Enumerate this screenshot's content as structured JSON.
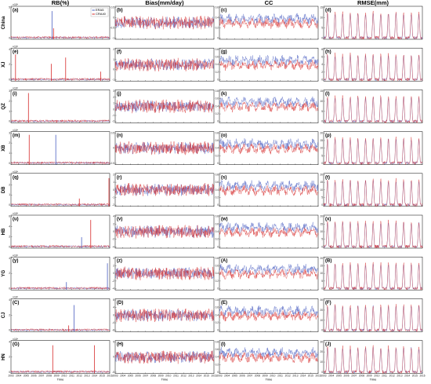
{
  "chart_data": {
    "type": "line",
    "x_ticks": [
      "2003",
      "2004",
      "2005",
      "2006",
      "2007",
      "2008",
      "2009",
      "2010",
      "2011",
      "2012",
      "2013",
      "2014",
      "2015",
      "2016"
    ],
    "xlabel": "Time",
    "legend": {
      "placement": "top-right",
      "entries": [
        {
          "name": "ERA5",
          "color": "#4a5fc1"
        },
        {
          "name": "CRA40",
          "color": "#d62a2a"
        }
      ]
    },
    "columns": [
      {
        "key": "rb",
        "title": "RB(%)",
        "scale": "×10⁴",
        "pattern": "spikes"
      },
      {
        "key": "bias",
        "title": "Bias(mm/day)",
        "scale": "",
        "pattern": "noise"
      },
      {
        "key": "cc",
        "title": "CC",
        "scale": "",
        "pattern": "noise"
      },
      {
        "key": "rmse",
        "title": "RMSE(mm)",
        "scale": "",
        "pattern": "seasonal"
      }
    ],
    "rows": [
      {
        "name": "China",
        "panels": [
          "(a)",
          "(b)",
          "(c)",
          "(d)"
        ],
        "yticks": [
          [
            "0",
            "5"
          ],
          [
            "-1",
            "-0.5",
            "0",
            "0.5"
          ],
          [
            "0",
            "0.2",
            "0.4",
            "0.6"
          ],
          [
            "0",
            "5",
            "10",
            "15"
          ]
        ]
      },
      {
        "name": "XJ",
        "panels": [
          "(e)",
          "(f)",
          "(g)",
          "(h)"
        ],
        "yticks": [
          [
            "0",
            "2",
            "4"
          ],
          [
            "-1",
            "0",
            "1",
            "2"
          ],
          [
            "0",
            "0.2",
            "0.4",
            "0.6",
            "0.8"
          ],
          [
            "0",
            "2",
            "4",
            "6",
            "8"
          ]
        ]
      },
      {
        "name": "QZ",
        "panels": [
          "(i)",
          "(j)",
          "(k)",
          "(l)"
        ],
        "yticks": [
          [
            "0",
            "1",
            "2",
            "3"
          ],
          [
            "-2",
            "-1",
            "0",
            "1",
            "2",
            "3"
          ],
          [
            "0",
            "0.2",
            "0.4",
            "0.6",
            "0.8"
          ],
          [
            "0",
            "5",
            "10",
            "15"
          ]
        ]
      },
      {
        "name": "XB",
        "panels": [
          "(m)",
          "(n)",
          "(o)",
          "(p)"
        ],
        "yticks": [
          [
            "0",
            "1",
            "2",
            "3"
          ],
          [
            "-0.5",
            "0",
            "0.5"
          ],
          [
            "0",
            "0.2",
            "0.4",
            "0.6",
            "0.8"
          ],
          [
            "0",
            "5",
            "10",
            "15",
            "20"
          ]
        ]
      },
      {
        "name": "DB",
        "panels": [
          "(q)",
          "(r)",
          "(s)",
          "(t)"
        ],
        "yticks": [
          [
            "0",
            "1",
            "2",
            "3"
          ],
          [
            "-2",
            "-1",
            "0",
            "1",
            "2"
          ],
          [
            "0",
            "0.2",
            "0.4",
            "0.6",
            "0.8"
          ],
          [
            "0",
            "5",
            "10",
            "15",
            "20"
          ]
        ]
      },
      {
        "name": "HB",
        "panels": [
          "(u)",
          "(v)",
          "(w)",
          "(x)"
        ],
        "yticks": [
          [
            "0",
            "2",
            "4",
            "6"
          ],
          [
            "-4",
            "-2",
            "0",
            "2",
            "4"
          ],
          [
            "0",
            "0.2",
            "0.4",
            "0.6",
            "0.8"
          ],
          [
            "0",
            "5",
            "10",
            "15",
            "20"
          ]
        ]
      },
      {
        "name": "YG",
        "panels": [
          "(y)",
          "(z)",
          "(A)",
          "(B)"
        ],
        "yticks": [
          [
            "0",
            "2",
            "4"
          ],
          [
            "-4",
            "-2",
            "0",
            "2",
            "4"
          ],
          [
            "0",
            "0.2",
            "0.4",
            "0.6",
            "0.8"
          ],
          [
            "0",
            "5",
            "10",
            "15",
            "20"
          ]
        ]
      },
      {
        "name": "CJ",
        "panels": [
          "(C)",
          "(D)",
          "(E)",
          "(F)"
        ],
        "yticks": [
          [
            "0",
            "2",
            "4"
          ],
          [
            "-8",
            "-4",
            "0",
            "4",
            "8"
          ],
          [
            "0",
            "0.2",
            "0.4",
            "0.6",
            "0.8"
          ],
          [
            "0",
            "10",
            "20",
            "30"
          ]
        ]
      },
      {
        "name": "HN",
        "panels": [
          "(G)",
          "(H)",
          "(I)",
          "(J)"
        ],
        "yticks": [
          [
            "0",
            "2",
            "4"
          ],
          [
            "-5",
            "0",
            "5"
          ],
          [
            "0",
            "0.2",
            "0.4",
            "0.6",
            "0.8"
          ],
          [
            "0",
            "10",
            "20",
            "30"
          ]
        ]
      }
    ],
    "rb_spikes": [
      [
        {
          "year": 2008.4,
          "v": 0.9,
          "s": "ERA5"
        },
        {
          "year": 2008.6,
          "v": 0.35,
          "s": "CRA40"
        }
      ],
      [
        {
          "year": 2003.6,
          "v": 0.85,
          "s": "CRA40"
        },
        {
          "year": 2008.3,
          "v": 0.55,
          "s": "CRA40"
        },
        {
          "year": 2010.2,
          "v": 0.75,
          "s": "CRA40"
        },
        {
          "year": 2014.8,
          "v": 0.3,
          "s": "CRA40"
        }
      ],
      [
        {
          "year": 2005.3,
          "v": 0.95,
          "s": "CRA40"
        },
        {
          "year": 2009.0,
          "v": 0.08,
          "s": "CRA40"
        }
      ],
      [
        {
          "year": 2005.4,
          "v": 0.95,
          "s": "CRA40"
        },
        {
          "year": 2008.9,
          "v": 0.95,
          "s": "ERA5"
        }
      ],
      [
        {
          "year": 2012.0,
          "v": 0.25,
          "s": "CRA40"
        },
        {
          "year": 2015.9,
          "v": 0.9,
          "s": "CRA40"
        }
      ],
      [
        {
          "year": 2012.3,
          "v": 0.35,
          "s": "ERA5"
        },
        {
          "year": 2013.5,
          "v": 0.9,
          "s": "CRA40"
        }
      ],
      [
        {
          "year": 2010.3,
          "v": 0.25,
          "s": "ERA5"
        },
        {
          "year": 2015.7,
          "v": 0.85,
          "s": "ERA5"
        }
      ],
      [
        {
          "year": 2011.3,
          "v": 0.85,
          "s": "ERA5"
        },
        {
          "year": 2010.6,
          "v": 0.2,
          "s": "CRA40"
        }
      ],
      [
        {
          "year": 2008.5,
          "v": 0.9,
          "s": "CRA40"
        },
        {
          "year": 2014.0,
          "v": 0.9,
          "s": "CRA40"
        }
      ]
    ]
  }
}
